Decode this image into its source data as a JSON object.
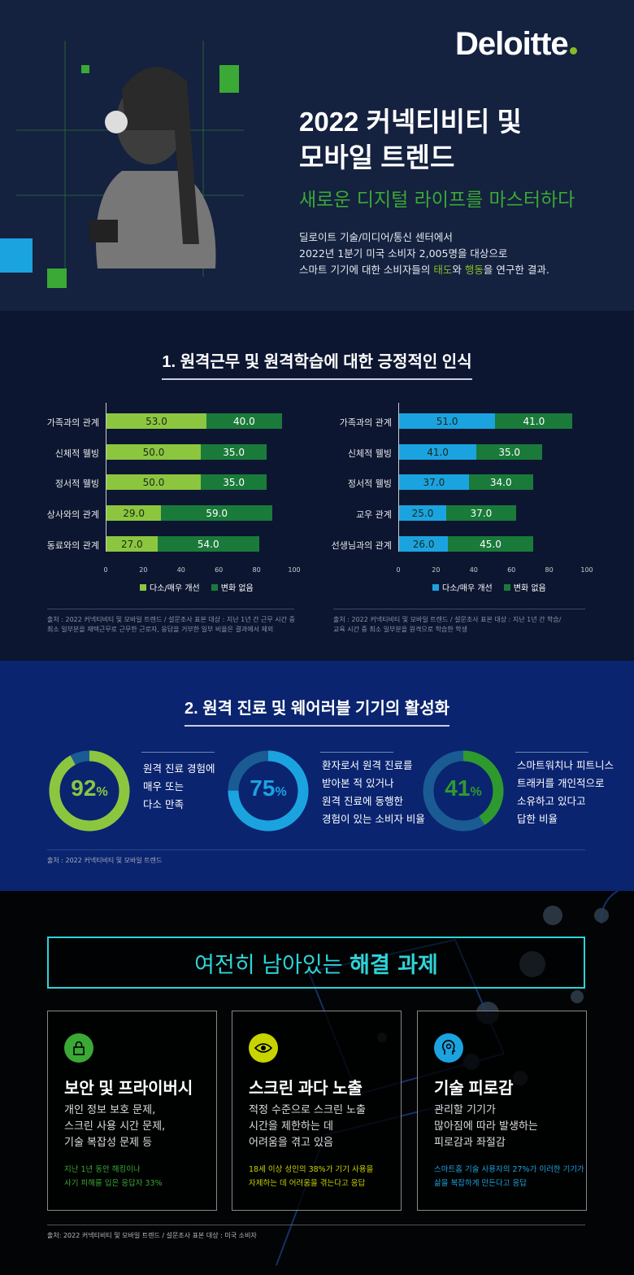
{
  "header": {
    "logo": "Deloitte",
    "title": "2022 커넥티비티 및\n모바일 트렌드",
    "subtitle": "새로운 디지털 라이프를 마스터하다",
    "desc_line1": "딜로이트 기술/미디어/통신 센터에서",
    "desc_line2": "2022년 1분기 미국 소비자 2,005명을 대상으로",
    "desc_line3_a": "스마트 기기에 대한 소비자들의 ",
    "desc_line3_b": "태도",
    "desc_line3_c": "와 ",
    "desc_line3_d": "행동",
    "desc_line3_e": "을 연구한 결과."
  },
  "section1": {
    "title": "1. 원격근무 및 원격학습에 대한 긍정적인 인식",
    "note_left": "출처 : 2022 커넥티비티 및 모바일 트렌드 / 설문조사 표본 대상 : 지난 1년 간 근무 시간 중\n최소 일부분을 재택근무로 근무한 근로자, 응답을 거부한 일부 비율은 결과에서 제외",
    "note_right": "출처 : 2022 커넥티비티 및 모바일 트렌드 / 설문조사 표본 대상 : 지난 1년 간 학습/\n교육 시간 중 최소 일부분을 원격으로 학습한 학생"
  },
  "chart_data": [
    {
      "type": "bar",
      "orientation": "horizontal",
      "stacked": true,
      "categories": [
        "가족과의 관계",
        "신체적 웰빙",
        "정서적 웰빙",
        "상사와의 관계",
        "동료와의 관계"
      ],
      "series": [
        {
          "name": "다소/매우 개선",
          "values": [
            53.0,
            50.0,
            50.0,
            29.0,
            27.0
          ],
          "color": "#8cc63f"
        },
        {
          "name": "변화 없음",
          "values": [
            40.0,
            35.0,
            35.0,
            59.0,
            54.0
          ],
          "color": "#1a7a3a"
        }
      ],
      "xlim": [
        0,
        100
      ],
      "xticks": [
        "0",
        "20",
        "40",
        "60",
        "80",
        "100"
      ]
    },
    {
      "type": "bar",
      "orientation": "horizontal",
      "stacked": true,
      "categories": [
        "가족과의 관계",
        "신체적 웰빙",
        "정서적 웰빙",
        "교우 관계",
        "선생님과의 관계"
      ],
      "series": [
        {
          "name": "다소/매우 개선",
          "values": [
            51.0,
            41.0,
            37.0,
            25.0,
            26.0
          ],
          "color": "#1ba3e0"
        },
        {
          "name": "변화 없음",
          "values": [
            41.0,
            35.0,
            34.0,
            37.0,
            45.0
          ],
          "color": "#1a7a3a"
        }
      ],
      "xlim": [
        0,
        100
      ],
      "xticks": [
        "0",
        "20",
        "40",
        "60",
        "80",
        "100"
      ]
    }
  ],
  "section2": {
    "title": "2. 원격 진료 및 웨어러블 기기의 활성화",
    "note": "출처 : 2022 커넥티비티 및 모바일 트렌드",
    "stats": [
      {
        "value": 92,
        "number": "92",
        "unit": "%",
        "color": "#8cc63f",
        "text": "원격 진료 경험에\n매우 또는\n다소 만족"
      },
      {
        "value": 75,
        "number": "75",
        "unit": "%",
        "color": "#1ba3e0",
        "text": "환자로서 원격 진료를\n받아본 적 있거나\n원격 진료에 동행한\n경험이 있는 소비자 비율"
      },
      {
        "value": 41,
        "number": "41",
        "unit": "%",
        "color": "#2e9a2e",
        "text": "스마트워치나 피트니스\n트래커를 개인적으로\n소유하고 있다고\n답한 비율"
      }
    ]
  },
  "section3": {
    "title_a": "여전히 남아있는 ",
    "title_b": "해결 과제",
    "note": "출처: 2022 커넥티비티 및 모바일 트렌드 / 설문조사 표본 대상 : 미국 소비자",
    "cards": [
      {
        "icon": "lock-icon",
        "color": "#3aa935",
        "heading": "보안 및 프라이버시",
        "body": "개인 정보 보호 문제,\n스크린 사용 시간 문제,\n기술 복잡성 문제 등",
        "footnote": "지난 1년 동안 해킹이나\n사기 피해를 입은 응답자 33%"
      },
      {
        "icon": "eye-icon",
        "color": "#c8d400",
        "heading": "스크린 과다 노출",
        "body": "적정 수준으로 스크린 노출\n시간을 제한하는 데\n어려움을 겪고 있음",
        "footnote": "18세 이상 성인의 38%가 기기 사용을\n자제하는 데 어려움을 겪는다고 응답"
      },
      {
        "icon": "head-icon",
        "color": "#1ba3e0",
        "heading": "기술 피로감",
        "body": "관리할 기기가\n많아짐에 따라 발생하는\n피로감과 좌절감",
        "footnote": "스마트홈 기술 사용자의 27%가 이러한 기기가\n삶을 복잡하게 만든다고 응답"
      }
    ]
  }
}
